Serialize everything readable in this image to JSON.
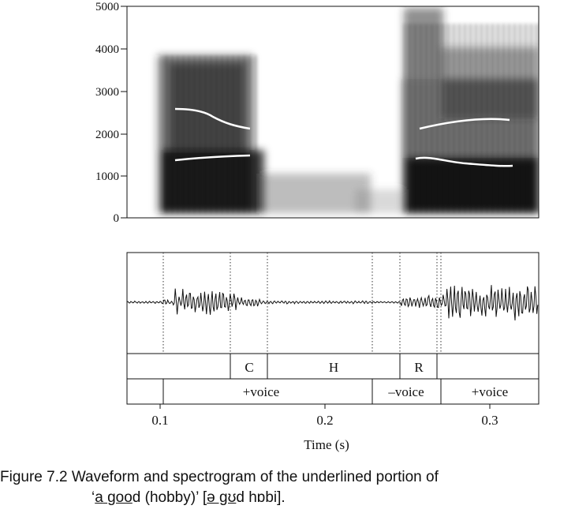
{
  "figure": {
    "spectrogram": {
      "y_ticks": [
        "5000",
        "4000",
        "3000",
        "2000",
        "1000",
        "0"
      ]
    },
    "tiers": {
      "segments": [
        "C",
        "H",
        "R"
      ],
      "voicing": [
        "+voice",
        "–voice",
        "+voice"
      ]
    },
    "x_axis": {
      "ticks": [
        "0.1",
        "0.2",
        "0.3"
      ],
      "label": "Time (s)"
    },
    "caption": {
      "prefix": "Figure 7.2  Waveform and spectrogram of the underlined portion of",
      "q_open": "‘",
      "a": "a",
      "sp": " ",
      "good": "goo",
      "d": "d",
      "rest": " (hobby)’ [",
      "ipa_u": "ə gʊ",
      "ipa_rest": "d hɒbi]."
    }
  }
}
